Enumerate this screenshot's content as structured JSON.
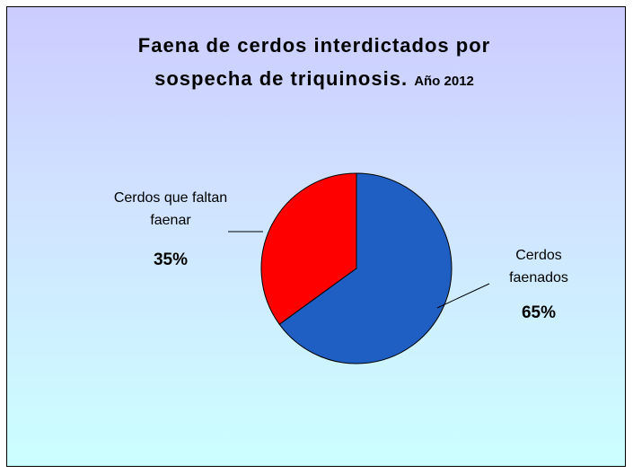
{
  "chart_data": {
    "type": "pie",
    "title": "Faena de cerdos interdictados por sospecha de triquinosis.",
    "subtitle": "Año 2012",
    "categories": [
      "Cerdos faenados",
      "Cerdos que faltan faenar"
    ],
    "values": [
      65,
      35
    ],
    "value_labels": [
      "65%",
      "35%"
    ],
    "colors": [
      "#1f5fc4",
      "#ff0000"
    ]
  }
}
